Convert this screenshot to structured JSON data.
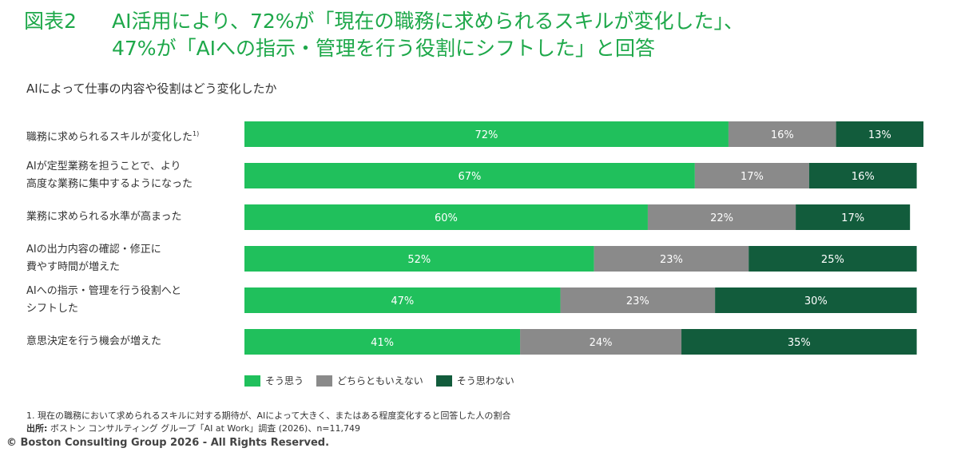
{
  "header": {
    "label": "図表2",
    "title_line1": "AI活用により、72%が「現在の職務に求められるスキルが変化した」、",
    "title_line2": "47%が「AIへの指示・管理を行う役割にシフトした」と回答"
  },
  "chart_data": {
    "type": "bar",
    "stacked": true,
    "orientation": "horizontal",
    "title": "AIによって仕事の内容や役割はどう変化したか",
    "categories": [
      [
        "職務に求められるスキルが変化した"
      ],
      [
        "AIが定型業務を担うことで、より",
        "高度な業務に集中するようになった"
      ],
      [
        "業務に求められる水準が高まった"
      ],
      [
        "AIの出力内容の確認・修正に",
        "費やす時間が増えた"
      ],
      [
        "AIへの指示・管理を行う役割へと",
        "シフトした"
      ],
      [
        "意思決定を行う機会が増えた"
      ]
    ],
    "category_superscripts": [
      "1)",
      "",
      "",
      "",
      "",
      ""
    ],
    "series": [
      {
        "name": "そう思う",
        "color": "#20c05c",
        "values": [
          72,
          67,
          60,
          52,
          47,
          41
        ]
      },
      {
        "name": "どちらともいえない",
        "color": "#8a8a8a",
        "values": [
          16,
          17,
          22,
          23,
          23,
          24
        ]
      },
      {
        "name": "そう思わない",
        "color": "#125c3c",
        "values": [
          13,
          16,
          17,
          25,
          30,
          35
        ]
      }
    ],
    "value_suffix": "%",
    "xlim": [
      0,
      101
    ],
    "legend_position": "bottom-left"
  },
  "footnote": "1. 現在の職務において求められるスキルに対する期待が、AIによって大きく、またはある程度変化すると回答した人の割合",
  "source": {
    "label": "出所:",
    "text": " ボストン コンサルティング グループ「AI at Work」調査 (2026)、n=11,749"
  },
  "copyright": "© Boston Consulting Group 2026 - All Rights Reserved."
}
